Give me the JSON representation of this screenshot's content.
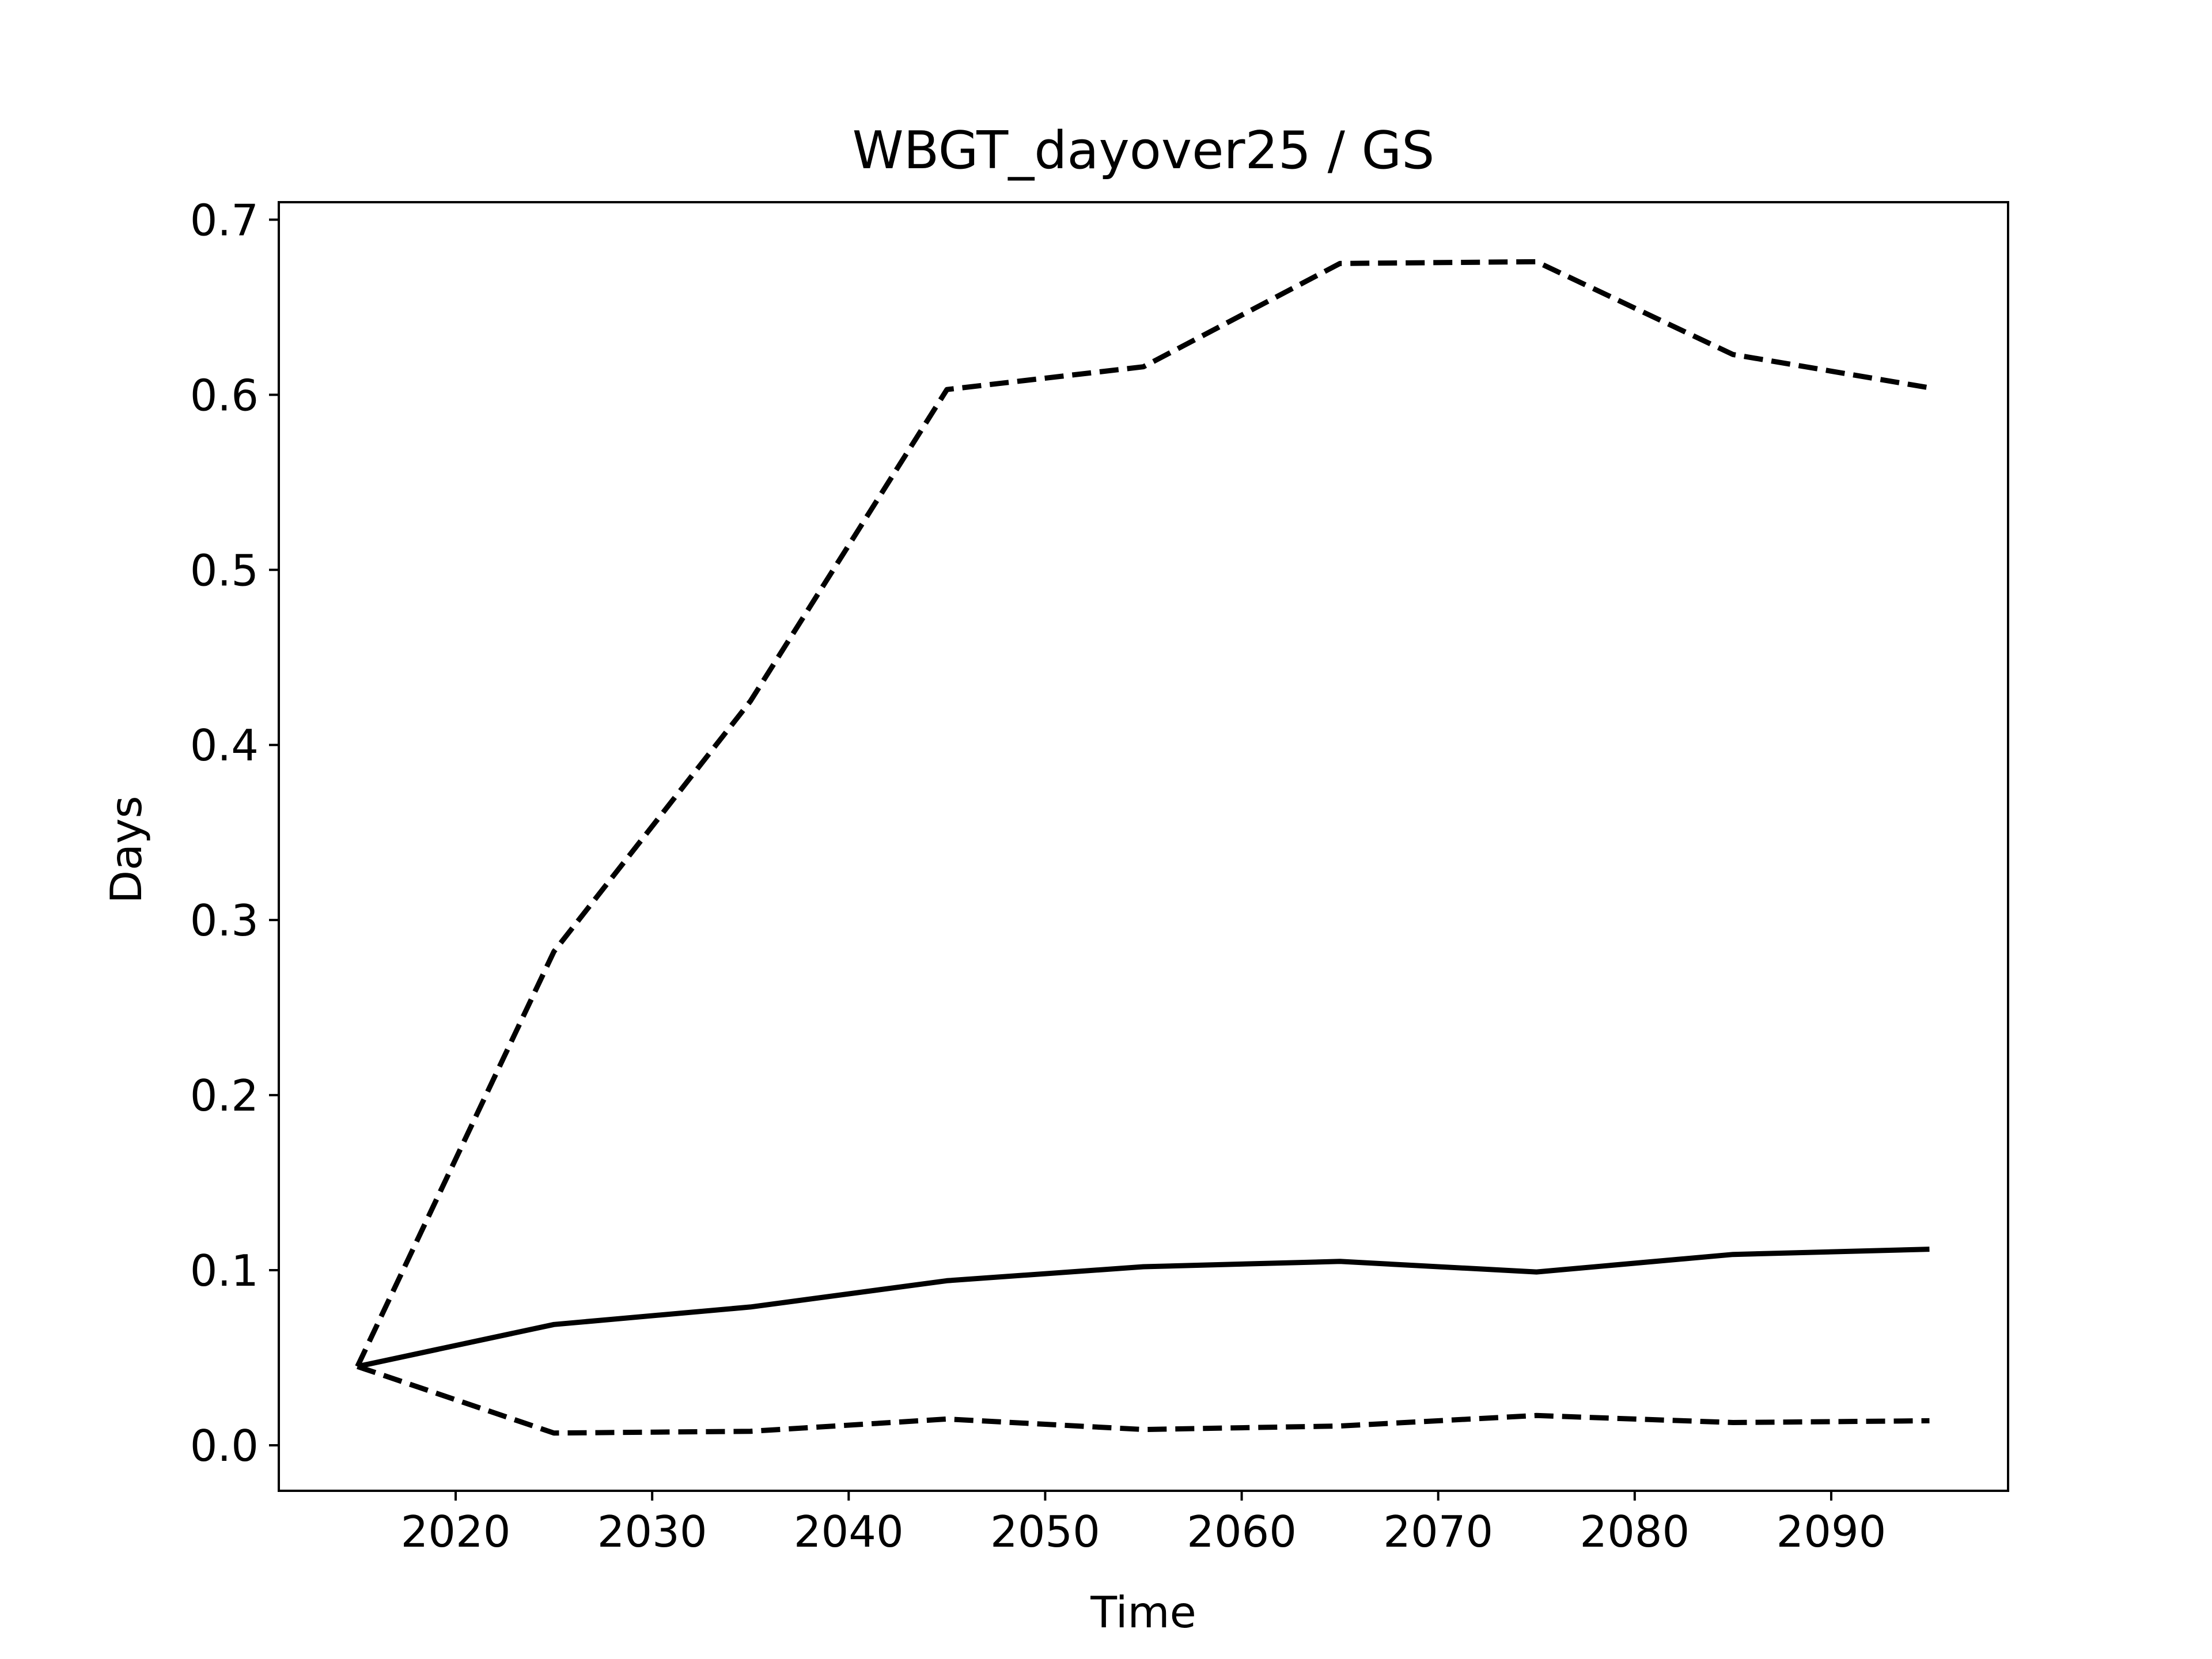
{
  "chart_data": {
    "type": "line",
    "title": "WBGT_dayover25 / GS",
    "xlabel": "Time",
    "ylabel": "Days",
    "xlim": [
      2011,
      2099
    ],
    "ylim": [
      -0.026,
      0.71
    ],
    "xticks": [
      2020,
      2030,
      2040,
      2050,
      2060,
      2070,
      2080,
      2090
    ],
    "yticks": [
      0.0,
      0.1,
      0.2,
      0.3,
      0.4,
      0.5,
      0.6,
      0.7
    ],
    "ytick_labels": [
      "0.0",
      "0.1",
      "0.2",
      "0.3",
      "0.4",
      "0.5",
      "0.6",
      "0.7"
    ],
    "grid": false,
    "legend": "none",
    "x": [
      2015,
      2025,
      2035,
      2045,
      2055,
      2065,
      2075,
      2085,
      2095
    ],
    "series": [
      {
        "style": "dashed",
        "color": "#000000",
        "values": [
          0.045,
          0.282,
          0.425,
          0.603,
          0.616,
          0.675,
          0.676,
          0.623,
          0.604
        ]
      },
      {
        "style": "solid",
        "color": "#000000",
        "values": [
          0.045,
          0.069,
          0.079,
          0.094,
          0.102,
          0.105,
          0.099,
          0.109,
          0.112
        ]
      },
      {
        "style": "dashed",
        "color": "#000000",
        "values": [
          0.045,
          0.007,
          0.008,
          0.015,
          0.009,
          0.011,
          0.017,
          0.013,
          0.014
        ]
      }
    ]
  }
}
